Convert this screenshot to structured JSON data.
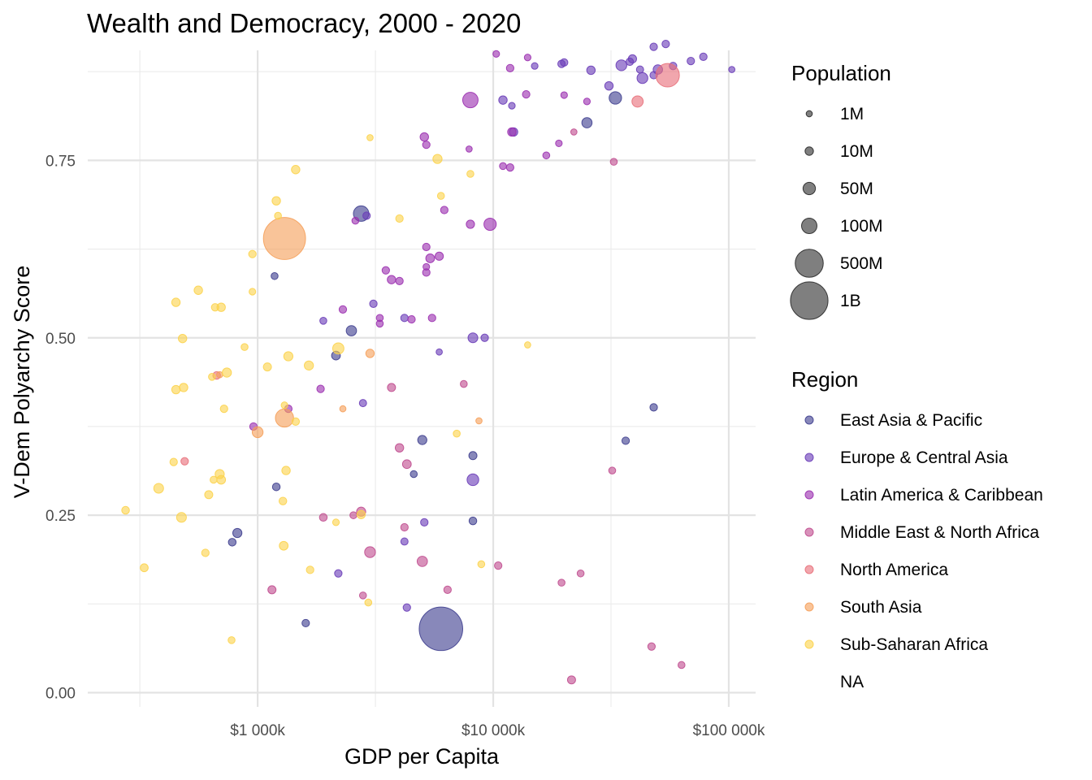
{
  "chart_data": {
    "type": "scatter",
    "title": "Wealth and Democracy, 2000 - 2020",
    "xlabel": "GDP per Capita",
    "ylabel": "V-Dem Polyarchy Score",
    "x_scale": "log10",
    "xlim": [
      190,
      130000
    ],
    "ylim": [
      -0.02,
      0.905
    ],
    "x_ticks": [
      {
        "value": 1000,
        "label": "$1 000k"
      },
      {
        "value": 10000,
        "label": "$10 000k"
      },
      {
        "value": 100000,
        "label": "$100 000k"
      }
    ],
    "y_ticks": [
      {
        "value": 0.0,
        "label": "0.00"
      },
      {
        "value": 0.25,
        "label": "0.25"
      },
      {
        "value": 0.5,
        "label": "0.50"
      },
      {
        "value": 0.75,
        "label": "0.75"
      }
    ],
    "grid": true,
    "size_legend": {
      "title": "Population",
      "entries": [
        {
          "label": "1M",
          "pop": 1
        },
        {
          "label": "10M",
          "pop": 10
        },
        {
          "label": "50M",
          "pop": 50
        },
        {
          "label": "100M",
          "pop": 100
        },
        {
          "label": "500M",
          "pop": 500
        },
        {
          "label": "1B",
          "pop": 1000
        }
      ]
    },
    "color_legend": {
      "title": "Region",
      "placement": "right",
      "entries": [
        {
          "label": "East Asia & Pacific",
          "color": "#3f3f8f"
        },
        {
          "label": "Europe & Central Asia",
          "color": "#6a3db8"
        },
        {
          "label": "Latin America & Caribbean",
          "color": "#9b30b0"
        },
        {
          "label": "Middle East & North Africa",
          "color": "#c04d8f"
        },
        {
          "label": "North America",
          "color": "#e8707a"
        },
        {
          "label": "South Asia",
          "color": "#f5a05a"
        },
        {
          "label": "Sub-Saharan Africa",
          "color": "#fcd34d"
        },
        {
          "label": "NA",
          "color": ""
        }
      ]
    },
    "series": [
      {
        "name": "East Asia & Pacific",
        "points": [
          [
            2750,
            0.675,
            100
          ],
          [
            2500,
            0.51,
            25
          ],
          [
            5000,
            0.356,
            15
          ],
          [
            8200,
            0.334,
            8
          ],
          [
            1200,
            0.29,
            6
          ],
          [
            820,
            0.225,
            15
          ],
          [
            4600,
            0.308,
            3
          ],
          [
            6000,
            0.09,
            1400
          ],
          [
            1600,
            0.098,
            5
          ],
          [
            48000,
            0.402,
            5
          ],
          [
            36500,
            0.355,
            5
          ],
          [
            25000,
            0.803,
            24
          ],
          [
            33000,
            0.838,
            50
          ],
          [
            8200,
            0.242,
            6
          ],
          [
            1180,
            0.587,
            3
          ],
          [
            2150,
            0.475,
            12
          ],
          [
            780,
            0.212,
            6
          ]
        ]
      },
      {
        "name": "Europe & Central Asia",
        "points": [
          [
            39000,
            0.893,
            9
          ],
          [
            35000,
            0.884,
            30
          ],
          [
            43000,
            0.866,
            30
          ],
          [
            48000,
            0.87,
            5
          ],
          [
            50000,
            0.878,
            17
          ],
          [
            58000,
            0.883,
            5
          ],
          [
            69000,
            0.89,
            5
          ],
          [
            78000,
            0.896,
            5
          ],
          [
            103000,
            0.878,
            1
          ],
          [
            54000,
            0.914,
            5
          ],
          [
            48000,
            0.91,
            5
          ],
          [
            42000,
            0.878,
            4
          ],
          [
            38000,
            0.889,
            5
          ],
          [
            31000,
            0.855,
            10
          ],
          [
            26000,
            0.877,
            10
          ],
          [
            20000,
            0.888,
            5
          ],
          [
            15000,
            0.883,
            2
          ],
          [
            11000,
            0.835,
            10
          ],
          [
            12000,
            0.827,
            2
          ],
          [
            19500,
            0.886,
            5
          ],
          [
            12200,
            0.79,
            10
          ],
          [
            8200,
            0.5,
            20
          ],
          [
            8200,
            0.3,
            40
          ],
          [
            4200,
            0.528,
            5
          ],
          [
            3100,
            0.548,
            5
          ],
          [
            2800,
            0.408,
            4
          ],
          [
            1900,
            0.524,
            3
          ],
          [
            2200,
            0.168,
            5
          ],
          [
            4200,
            0.213,
            4
          ],
          [
            4300,
            0.12,
            5
          ],
          [
            5100,
            0.24,
            5
          ],
          [
            5900,
            0.48,
            1
          ],
          [
            9200,
            0.5,
            5
          ],
          [
            2900,
            0.672,
            5
          ]
        ]
      },
      {
        "name": "Latin America & Caribbean",
        "points": [
          [
            8000,
            0.835,
            100
          ],
          [
            9700,
            0.66,
            48
          ],
          [
            11800,
            0.74,
            5
          ],
          [
            12000,
            0.79,
            10
          ],
          [
            13800,
            0.843,
            5
          ],
          [
            11800,
            0.88,
            5
          ],
          [
            10300,
            0.9,
            2
          ],
          [
            14000,
            0.895,
            2
          ],
          [
            16800,
            0.757,
            3
          ],
          [
            20000,
            0.842,
            2
          ],
          [
            25000,
            0.833,
            2
          ],
          [
            19000,
            0.774,
            2
          ],
          [
            8000,
            0.66,
            9
          ],
          [
            6200,
            0.68,
            5
          ],
          [
            5900,
            0.615,
            9
          ],
          [
            5400,
            0.612,
            12
          ],
          [
            5200,
            0.628,
            5
          ],
          [
            5200,
            0.6,
            2
          ],
          [
            5200,
            0.592,
            5
          ],
          [
            5100,
            0.783,
            10
          ],
          [
            5200,
            0.772,
            5
          ],
          [
            5500,
            0.528,
            5
          ],
          [
            4500,
            0.526,
            5
          ],
          [
            3700,
            0.582,
            10
          ],
          [
            3500,
            0.595,
            5
          ],
          [
            3300,
            0.528,
            3
          ],
          [
            3300,
            0.52,
            3
          ],
          [
            4000,
            0.58,
            5
          ],
          [
            2600,
            0.665,
            3
          ],
          [
            2300,
            0.54,
            5
          ],
          [
            1850,
            0.428,
            5
          ],
          [
            1350,
            0.4,
            5
          ],
          [
            960,
            0.375,
            5
          ],
          [
            11000,
            0.742,
            3
          ],
          [
            7900,
            0.766,
            1
          ]
        ]
      },
      {
        "name": "Middle East & North Africa",
        "points": [
          [
            3000,
            0.198,
            30
          ],
          [
            5000,
            0.185,
            25
          ],
          [
            4300,
            0.322,
            12
          ],
          [
            4000,
            0.345,
            10
          ],
          [
            3700,
            0.43,
            8
          ],
          [
            2750,
            0.255,
            15
          ],
          [
            2550,
            0.25,
            3
          ],
          [
            1900,
            0.247,
            6
          ],
          [
            4200,
            0.233,
            5
          ],
          [
            7500,
            0.435,
            3
          ],
          [
            6400,
            0.145,
            5
          ],
          [
            2800,
            0.137,
            3
          ],
          [
            1150,
            0.145,
            8
          ],
          [
            10500,
            0.179,
            5
          ],
          [
            19500,
            0.155,
            3
          ],
          [
            23500,
            0.168,
            3
          ],
          [
            21500,
            0.018,
            8
          ],
          [
            47000,
            0.065,
            5
          ],
          [
            63000,
            0.039,
            3
          ],
          [
            32000,
            0.313,
            3
          ],
          [
            32500,
            0.748,
            3
          ],
          [
            22000,
            0.79,
            1
          ]
        ]
      },
      {
        "name": "North America",
        "points": [
          [
            55000,
            0.87,
            320
          ],
          [
            41000,
            0.833,
            35
          ],
          [
            670,
            0.447,
            6
          ],
          [
            490,
            0.326,
            5
          ]
        ]
      },
      {
        "name": "South Asia",
        "points": [
          [
            1300,
            0.64,
            1300
          ],
          [
            1300,
            0.387,
            160
          ],
          [
            1000,
            0.367,
            30
          ],
          [
            3000,
            0.478,
            10
          ],
          [
            2300,
            0.4,
            1
          ],
          [
            8700,
            0.383,
            1
          ],
          [
            690,
            0.448,
            1
          ]
        ]
      },
      {
        "name": "Sub-Saharan Africa",
        "points": [
          [
            1450,
            0.737,
            10
          ],
          [
            1200,
            0.693,
            10
          ],
          [
            1220,
            0.672,
            3
          ],
          [
            3000,
            0.782,
            1
          ],
          [
            5800,
            0.752,
            15
          ],
          [
            6000,
            0.7,
            3
          ],
          [
            8000,
            0.731,
            3
          ],
          [
            4000,
            0.668,
            5
          ],
          [
            950,
            0.618,
            5
          ],
          [
            950,
            0.565,
            2
          ],
          [
            560,
            0.567,
            10
          ],
          [
            450,
            0.55,
            10
          ],
          [
            660,
            0.543,
            5
          ],
          [
            700,
            0.543,
            10
          ],
          [
            480,
            0.499,
            10
          ],
          [
            880,
            0.487,
            3
          ],
          [
            2200,
            0.485,
            35
          ],
          [
            1350,
            0.474,
            15
          ],
          [
            1650,
            0.461,
            15
          ],
          [
            1100,
            0.459,
            8
          ],
          [
            740,
            0.451,
            15
          ],
          [
            640,
            0.445,
            3
          ],
          [
            485,
            0.43,
            10
          ],
          [
            450,
            0.427,
            10
          ],
          [
            720,
            0.4,
            5
          ],
          [
            1300,
            0.405,
            2
          ],
          [
            1450,
            0.382,
            5
          ],
          [
            2750,
            0.251,
            10
          ],
          [
            1320,
            0.313,
            10
          ],
          [
            690,
            0.308,
            15
          ],
          [
            700,
            0.3,
            12
          ],
          [
            650,
            0.3,
            3
          ],
          [
            440,
            0.325,
            5
          ],
          [
            380,
            0.288,
            20
          ],
          [
            620,
            0.279,
            8
          ],
          [
            1280,
            0.27,
            6
          ],
          [
            475,
            0.247,
            20
          ],
          [
            2150,
            0.24,
            2
          ],
          [
            275,
            0.257,
            6
          ],
          [
            1290,
            0.207,
            12
          ],
          [
            600,
            0.197,
            5
          ],
          [
            330,
            0.176,
            7
          ],
          [
            1670,
            0.173,
            5
          ],
          [
            2950,
            0.127,
            3
          ],
          [
            8900,
            0.181,
            3
          ],
          [
            7000,
            0.365,
            3
          ],
          [
            14000,
            0.49,
            1
          ],
          [
            775,
            0.074,
            3
          ]
        ]
      }
    ]
  }
}
